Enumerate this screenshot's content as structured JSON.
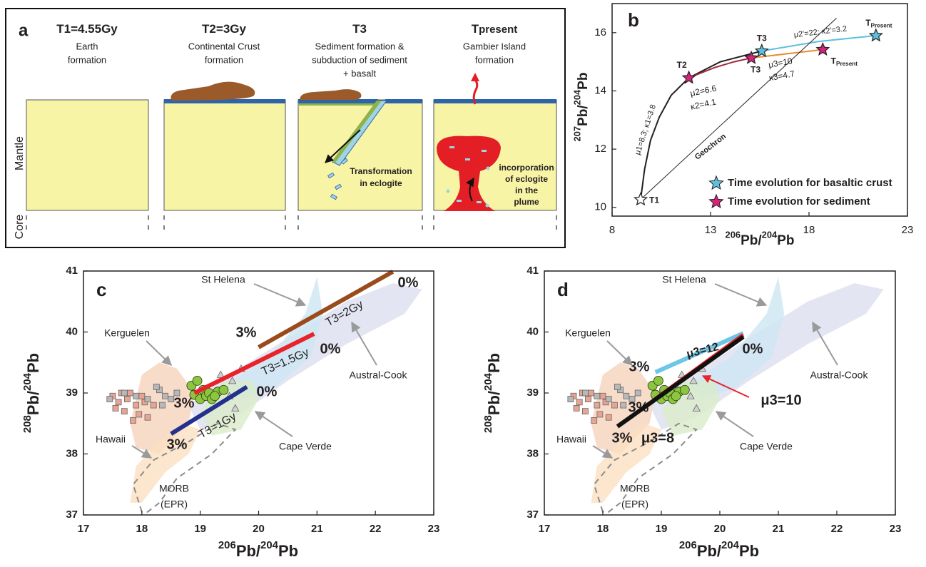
{
  "panel_a": {
    "label": "a",
    "stages": [
      {
        "title": [
          "T1=4.55Gy"
        ],
        "caption": [
          "Earth",
          "formation"
        ]
      },
      {
        "title": [
          "T2=3Gy"
        ],
        "caption": [
          "Continental Crust",
          "formation"
        ]
      },
      {
        "title": [
          "T3"
        ],
        "caption": [
          "Sediment formation &",
          "subduction of sediment",
          "+ basalt"
        ]
      },
      {
        "title": [
          "T",
          "present"
        ],
        "caption": [
          "Gambier Island",
          "formation"
        ]
      }
    ],
    "side_labels": [
      "Mantle",
      "Core"
    ],
    "notes": [
      [
        "Transformation",
        "in eclogite"
      ],
      [
        "incorporation",
        "of eclogite",
        "in the",
        "plume"
      ]
    ]
  },
  "chart_data": [
    {
      "type": "line",
      "label": "b",
      "x_label": [
        "206",
        "Pb/",
        "204",
        "Pb"
      ],
      "y_label": [
        "207",
        "Pb/",
        "204",
        "Pb"
      ],
      "xlim": [
        8,
        23
      ],
      "ylim": [
        9.7,
        17
      ],
      "xticks": [
        8,
        13,
        18,
        23
      ],
      "yticks": [
        10,
        12,
        14,
        16
      ],
      "lines": [
        {
          "color": "#231f20",
          "x": [
            9.45,
            9.65,
            9.95,
            10.4,
            11.0,
            11.9
          ],
          "y": [
            10.27,
            11.3,
            12.3,
            13.1,
            13.85,
            14.45
          ]
        },
        {
          "color": "#231f20",
          "x": [
            11.9,
            13.5,
            15.6
          ],
          "y": [
            14.45,
            15.0,
            15.37
          ]
        },
        {
          "color": "#a0283c",
          "x": [
            11.9,
            13.2,
            14.2,
            15.07
          ],
          "y": [
            14.45,
            14.8,
            15.0,
            15.13
          ]
        },
        {
          "color": "#5bc0de",
          "x": [
            15.6,
            18.5,
            21.4
          ],
          "y": [
            15.37,
            15.7,
            15.9
          ]
        },
        {
          "color": "#e88a2e",
          "x": [
            15.07,
            18.7
          ],
          "y": [
            15.13,
            15.42
          ]
        },
        {
          "color": "#231f20",
          "x": [
            9.45,
            19.4
          ],
          "y": [
            10.27,
            16.5
          ]
        }
      ],
      "series": [
        {
          "name": "Time evolution for basaltic crust",
          "color": "#5bc0de",
          "label_color": "#1f6f8b",
          "x": [
            15.6,
            21.4
          ],
          "y": [
            15.37,
            15.9
          ],
          "point_labels": [
            [
              "T3"
            ],
            [
              "T",
              "Present"
            ]
          ]
        },
        {
          "name": "Time evolution for sediment",
          "color": "#d6247a",
          "label_color": "#c8175d",
          "x": [
            11.9,
            15.07,
            18.7
          ],
          "y": [
            14.45,
            15.13,
            15.42
          ],
          "point_labels": [
            [
              "T2"
            ],
            [
              "T3"
            ],
            [
              "T",
              "Present"
            ]
          ]
        },
        {
          "color": "#ffffff",
          "label_color": "#231f20",
          "x": [
            9.45
          ],
          "y": [
            10.27
          ],
          "point_labels": [
            [
              "T1"
            ]
          ]
        }
      ],
      "annotations": [
        {
          "text": "μ1=8.3; κ1=3.8",
          "color": "#231f20"
        },
        {
          "text": "μ2=6.6",
          "color": "#a0283c"
        },
        {
          "text": "κ2=4.1",
          "color": "#a0283c"
        },
        {
          "text": "μ3=10",
          "color": "#e07b22"
        },
        {
          "text": "κ3=4.7",
          "color": "#e07b22"
        },
        {
          "text": "μ2'=22; κ2'=3.2",
          "color": "#2a7a96"
        },
        {
          "text": "Geochron",
          "color": "#231f20"
        }
      ],
      "legend": "lower right"
    },
    {
      "type": "scatter",
      "label": "c",
      "x_label": [
        "206",
        "Pb/",
        "204",
        "Pb"
      ],
      "y_label": [
        "208",
        "Pb/",
        "204",
        "Pb"
      ],
      "xlim": [
        17,
        23
      ],
      "ylim": [
        37,
        41
      ],
      "xticks": [
        17,
        18,
        19,
        20,
        21,
        22,
        23
      ],
      "yticks": [
        37,
        38,
        39,
        40,
        41
      ],
      "regions": [
        {
          "label": [
            "Austral-Cook"
          ],
          "color": "#dcdff0",
          "x": [
            18.8,
            19.5,
            20.5,
            21.5,
            22.3,
            22.8,
            22.5,
            21.5,
            20.5,
            19.6,
            19.0
          ],
          "y": [
            38.8,
            39.3,
            39.9,
            40.5,
            40.8,
            40.7,
            40.3,
            39.8,
            39.2,
            38.6,
            38.4
          ]
        },
        {
          "label": [
            "St Helena"
          ],
          "color": "#cde6f2",
          "x": [
            19.4,
            20.2,
            20.8,
            21.0,
            21.1,
            20.9,
            20.3,
            19.7
          ],
          "y": [
            39.1,
            39.6,
            40.3,
            40.9,
            40.3,
            39.6,
            39.1,
            38.9
          ]
        },
        {
          "label": [
            "Kerguelen"
          ],
          "color": "#f6d3bd",
          "x": [
            17.8,
            18.0,
            18.3,
            18.6,
            18.9,
            18.8,
            18.3,
            17.9
          ],
          "y": [
            38.5,
            39.3,
            39.5,
            39.4,
            39.0,
            38.5,
            38.0,
            38.1
          ]
        },
        {
          "label": [
            "Hawaii"
          ],
          "color": "#fbe0c0",
          "x": [
            17.8,
            17.9,
            18.3,
            18.7,
            19.0,
            18.8,
            18.4,
            18.0
          ],
          "y": [
            37.2,
            37.8,
            38.2,
            38.5,
            38.4,
            38.0,
            37.7,
            37.2
          ]
        },
        {
          "label": [
            "Cape Verde"
          ],
          "color": "#d9ecc9",
          "x": [
            19.0,
            19.4,
            19.9,
            20.0,
            19.7,
            19.2
          ],
          "y": [
            38.7,
            39.2,
            39.2,
            38.9,
            38.4,
            38.3
          ]
        },
        {
          "label": [
            "MORB",
            "(EPR)"
          ],
          "color": "#8c8c8c",
          "dashed": true,
          "x": [
            18.0,
            17.85,
            18.2,
            18.8,
            19.3,
            19.6,
            19.2,
            18.6,
            18.3,
            18.1
          ],
          "y": [
            37.05,
            37.5,
            37.9,
            38.2,
            38.5,
            38.4,
            38.0,
            37.6,
            37.2,
            37.05
          ]
        }
      ],
      "points": [
        {
          "marker": "square",
          "color": "#e8a493",
          "x": [
            17.5,
            17.6,
            17.7,
            17.8,
            17.9,
            18.0,
            18.1,
            17.55,
            17.75,
            17.95,
            18.2,
            17.65,
            18.05,
            17.85
          ],
          "y": [
            38.95,
            38.85,
            38.7,
            39.0,
            38.8,
            38.95,
            38.6,
            38.75,
            38.9,
            38.65,
            38.8,
            39.0,
            38.85,
            38.55
          ]
        },
        {
          "marker": "square",
          "color": "#b8b8b8",
          "x": [
            17.45,
            17.7,
            17.9,
            18.1,
            18.3,
            18.4,
            18.5,
            18.6,
            18.35,
            18.25
          ],
          "y": [
            38.9,
            39.0,
            38.95,
            38.9,
            39.05,
            38.95,
            38.9,
            39.0,
            38.8,
            39.1
          ]
        },
        {
          "marker": "triangle",
          "color": "#d0d0d0",
          "x": [
            19.5,
            19.7,
            19.35,
            19.6,
            19.55
          ],
          "y": [
            38.95,
            39.4,
            39.3,
            38.75,
            39.2
          ]
        },
        {
          "marker": "circle",
          "color": "#8cc63f",
          "x": [
            18.85,
            18.9,
            19.0,
            19.05,
            19.1,
            19.15,
            19.2,
            19.3,
            19.4,
            18.95,
            19.25
          ],
          "y": [
            39.12,
            38.97,
            38.9,
            39.05,
            38.95,
            39.0,
            38.9,
            39.02,
            39.05,
            39.2,
            38.95
          ]
        }
      ],
      "lines": [
        {
          "label": "T3=2Gy",
          "color": "#9b4a1c",
          "x": [
            20.0,
            22.3
          ],
          "y": [
            39.75,
            40.99
          ],
          "start_label": "3%",
          "end_label": "0%"
        },
        {
          "label": "T3=1.5Gy",
          "color": "#e8232a",
          "x": [
            18.9,
            20.95
          ],
          "y": [
            39.0,
            39.97
          ],
          "start_label": "3%",
          "end_label": "0%"
        },
        {
          "label": "T3=1Gy",
          "color": "#23318c",
          "x": [
            18.5,
            19.8
          ],
          "y": [
            38.33,
            39.1
          ],
          "start_label": "3%",
          "end_label": "0%"
        }
      ]
    },
    {
      "type": "scatter",
      "label": "d",
      "x_label": [
        "206",
        "Pb/",
        "204",
        "Pb"
      ],
      "y_label": [
        "208",
        "Pb/",
        "204",
        "Pb"
      ],
      "xlim": [
        17,
        23
      ],
      "ylim": [
        37,
        41
      ],
      "xticks": [
        17,
        18,
        19,
        20,
        21,
        22,
        23
      ],
      "yticks": [
        37,
        38,
        39,
        40,
        41
      ],
      "regions": [
        {
          "label": [
            "Austral-Cook"
          ],
          "color": "#dcdff0",
          "x": [
            18.8,
            19.5,
            20.5,
            21.5,
            22.3,
            22.8,
            22.5,
            21.5,
            20.5,
            19.6,
            19.0
          ],
          "y": [
            38.8,
            39.3,
            39.9,
            40.5,
            40.8,
            40.7,
            40.3,
            39.8,
            39.2,
            38.6,
            38.4
          ]
        },
        {
          "label": [
            "St Helena"
          ],
          "color": "#cde6f2",
          "x": [
            19.4,
            20.2,
            20.8,
            21.0,
            21.1,
            20.9,
            20.3,
            19.7
          ],
          "y": [
            39.1,
            39.6,
            40.3,
            40.9,
            40.3,
            39.6,
            39.1,
            38.9
          ]
        },
        {
          "label": [
            "Kerguelen"
          ],
          "color": "#f6d3bd",
          "x": [
            17.8,
            18.0,
            18.3,
            18.6,
            18.9,
            18.8,
            18.3,
            17.9
          ],
          "y": [
            38.5,
            39.3,
            39.5,
            39.4,
            39.0,
            38.5,
            38.0,
            38.1
          ]
        },
        {
          "label": [
            "Hawaii"
          ],
          "color": "#fbe0c0",
          "x": [
            17.8,
            17.9,
            18.3,
            18.7,
            19.0,
            18.8,
            18.4,
            18.0
          ],
          "y": [
            37.2,
            37.8,
            38.2,
            38.5,
            38.4,
            38.0,
            37.7,
            37.2
          ]
        },
        {
          "label": [
            "Cape Verde"
          ],
          "color": "#d9ecc9",
          "x": [
            19.0,
            19.4,
            19.9,
            20.0,
            19.7,
            19.2
          ],
          "y": [
            38.7,
            39.2,
            39.2,
            38.9,
            38.4,
            38.3
          ]
        },
        {
          "label": [
            "MORB",
            "(EPR)"
          ],
          "color": "#8c8c8c",
          "dashed": true,
          "x": [
            18.0,
            17.85,
            18.2,
            18.8,
            19.3,
            19.6,
            19.2,
            18.6,
            18.3,
            18.1
          ],
          "y": [
            37.05,
            37.5,
            37.9,
            38.2,
            38.5,
            38.4,
            38.0,
            37.6,
            37.2,
            37.05
          ]
        }
      ],
      "points": [
        {
          "marker": "square",
          "color": "#e8a493",
          "x": [
            17.5,
            17.6,
            17.7,
            17.8,
            17.9,
            18.0,
            18.1,
            17.55,
            17.75,
            17.95,
            18.2,
            17.65,
            18.05,
            17.85
          ],
          "y": [
            38.95,
            38.85,
            38.7,
            39.0,
            38.8,
            38.95,
            38.6,
            38.75,
            38.9,
            38.65,
            38.8,
            39.0,
            38.85,
            38.55
          ]
        },
        {
          "marker": "square",
          "color": "#b8b8b8",
          "x": [
            17.45,
            17.7,
            17.9,
            18.1,
            18.3,
            18.4,
            18.5,
            18.6,
            18.35,
            18.25
          ],
          "y": [
            38.9,
            39.0,
            38.95,
            38.9,
            39.05,
            38.95,
            38.9,
            39.0,
            38.8,
            39.1
          ]
        },
        {
          "marker": "triangle",
          "color": "#d0d0d0",
          "x": [
            19.5,
            19.7,
            19.35,
            19.6,
            19.55
          ],
          "y": [
            38.95,
            39.4,
            39.3,
            38.75,
            39.2
          ]
        },
        {
          "marker": "circle",
          "color": "#8cc63f",
          "x": [
            18.85,
            18.9,
            19.0,
            19.05,
            19.1,
            19.15,
            19.2,
            19.3,
            19.4,
            18.95,
            19.25
          ],
          "y": [
            39.12,
            38.97,
            38.9,
            39.05,
            38.95,
            39.0,
            38.9,
            39.02,
            39.05,
            39.2,
            38.95
          ]
        }
      ],
      "lines": [
        {
          "label": "μ3=12",
          "color": "#6ec6e6",
          "x": [
            18.9,
            20.4
          ],
          "y": [
            39.34,
            39.98
          ],
          "start_label": "3%"
        },
        {
          "label": "μ3=10",
          "color": "#e8232a",
          "x": [
            18.9,
            20.4
          ],
          "y": [
            38.9,
            39.95
          ],
          "start_label": "3%",
          "end_label": "0%"
        },
        {
          "label": "μ3=8",
          "color": "#111111",
          "x": [
            18.25,
            20.4
          ],
          "y": [
            38.45,
            39.92
          ],
          "start_label": "3%"
        }
      ]
    }
  ]
}
